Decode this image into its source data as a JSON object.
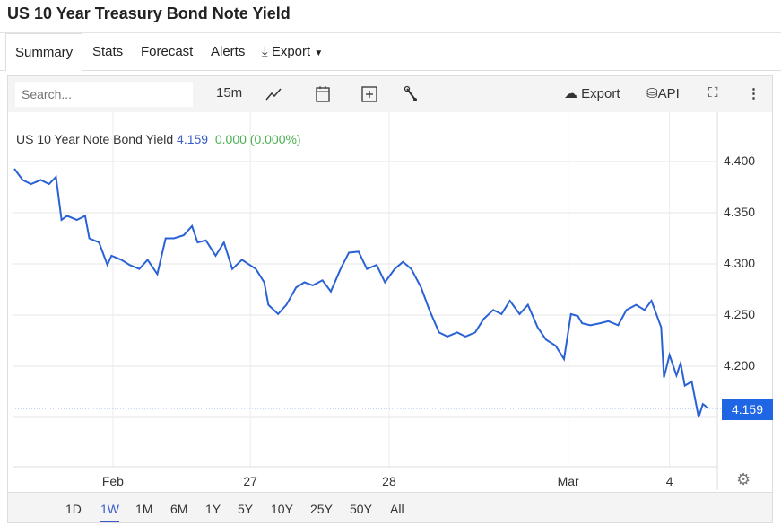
{
  "title": "US 10 Year Treasury Bond Note Yield",
  "tabs": [
    {
      "label": "Summary"
    },
    {
      "label": "Stats"
    },
    {
      "label": "Forecast"
    },
    {
      "label": "Alerts"
    },
    {
      "label": "Export"
    }
  ],
  "toolbar": {
    "search_placeholder": "Search...",
    "interval": "15m",
    "export": "Export",
    "api": "API"
  },
  "legend": {
    "name": "US 10 Year Note Bond Yield",
    "value": "4.159",
    "change": "0.000 (0.000%)"
  },
  "colors": {
    "line": "#2a62d6",
    "value": "#3a5bc7",
    "change": "#4caf50",
    "price_box": "#1f66e5"
  },
  "ranges": [
    "1D",
    "1W",
    "1M",
    "6M",
    "1Y",
    "5Y",
    "10Y",
    "25Y",
    "50Y",
    "All"
  ],
  "active_range": "1W",
  "chart_data": {
    "type": "line",
    "title": "US 10 Year Note Bond Yield",
    "ylim": [
      4.11,
      4.445
    ],
    "xlim": [
      0,
      5.0
    ],
    "yticks": [
      {
        "v": 4.4,
        "label": "4.400"
      },
      {
        "v": 4.35,
        "label": "4.350"
      },
      {
        "v": 4.3,
        "label": "4.300"
      },
      {
        "v": 4.25,
        "label": "4.250"
      },
      {
        "v": 4.2,
        "label": "4.200"
      }
    ],
    "xticks": [
      {
        "v": 0.71,
        "label": "Feb"
      },
      {
        "v": 1.7,
        "label": "27"
      },
      {
        "v": 2.7,
        "label": "28"
      },
      {
        "v": 3.99,
        "label": "Mar"
      },
      {
        "v": 4.72,
        "label": "4"
      }
    ],
    "last_value": "4.159",
    "x": [
      0,
      0.06,
      0.12,
      0.19,
      0.25,
      0.3,
      0.34,
      0.38,
      0.45,
      0.51,
      0.54,
      0.61,
      0.67,
      0.7,
      0.77,
      0.83,
      0.9,
      0.96,
      1.03,
      1.09,
      1.15,
      1.22,
      1.28,
      1.32,
      1.38,
      1.45,
      1.51,
      1.57,
      1.64,
      1.74,
      1.8,
      1.83,
      1.9,
      1.96,
      2.03,
      2.09,
      2.15,
      2.22,
      2.28,
      2.35,
      2.41,
      2.48,
      2.54,
      2.61,
      2.67,
      2.74,
      2.8,
      2.86,
      2.93,
      2.99,
      3.06,
      3.12,
      3.19,
      3.25,
      3.32,
      3.38,
      3.45,
      3.51,
      3.57,
      3.64,
      3.7,
      3.77,
      3.83,
      3.9,
      3.96,
      4.01,
      4.06,
      4.09,
      4.15,
      4.22,
      4.28,
      4.35,
      4.41,
      4.48,
      4.54,
      4.59,
      4.66,
      4.68,
      4.72,
      4.77,
      4.8,
      4.83,
      4.88,
      4.93,
      4.96,
      5.0
    ],
    "y": [
      4.393,
      4.382,
      4.378,
      4.382,
      4.378,
      4.385,
      4.343,
      4.347,
      4.343,
      4.347,
      4.325,
      4.321,
      4.299,
      4.308,
      4.304,
      4.299,
      4.295,
      4.304,
      4.29,
      4.325,
      4.325,
      4.328,
      4.337,
      4.321,
      4.323,
      4.308,
      4.321,
      4.295,
      4.304,
      4.295,
      4.282,
      4.26,
      4.251,
      4.26,
      4.277,
      4.282,
      4.279,
      4.284,
      4.273,
      4.295,
      4.311,
      4.312,
      4.295,
      4.299,
      4.282,
      4.295,
      4.302,
      4.295,
      4.277,
      4.255,
      4.233,
      4.229,
      4.233,
      4.229,
      4.233,
      4.246,
      4.255,
      4.251,
      4.264,
      4.251,
      4.26,
      4.238,
      4.226,
      4.22,
      4.207,
      4.251,
      4.249,
      4.242,
      4.24,
      4.242,
      4.244,
      4.24,
      4.255,
      4.26,
      4.255,
      4.264,
      4.238,
      4.189,
      4.211,
      4.191,
      4.203,
      4.181,
      4.185,
      4.15,
      4.163,
      4.159
    ]
  }
}
